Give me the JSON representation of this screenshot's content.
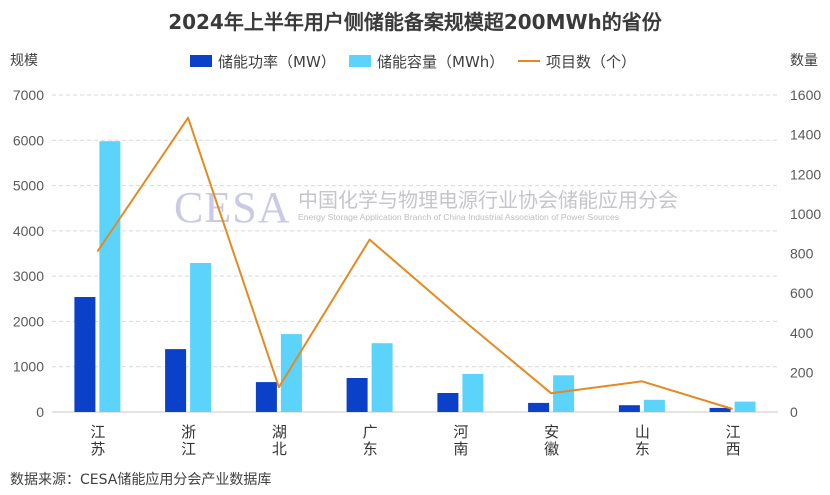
{
  "chart_data": {
    "type": "bar",
    "title": "2024年上半年用户侧储能备案规模超200MWh的省份",
    "ylabel": "规模",
    "y2label": "数量",
    "categories": [
      "江苏",
      "浙江",
      "湖北",
      "广东",
      "河南",
      "安徽",
      "山东",
      "江西"
    ],
    "ylim": [
      0,
      7000
    ],
    "y2lim": [
      0,
      1600
    ],
    "yticks": [
      0,
      1000,
      2000,
      3000,
      4000,
      5000,
      6000,
      7000
    ],
    "y2ticks": [
      0,
      200,
      400,
      600,
      800,
      1000,
      1200,
      1400,
      1600
    ],
    "grid": true,
    "legend": "top-center",
    "series": [
      {
        "name": "储能功率（MW）",
        "type": "bar",
        "axis": "left",
        "color": "#0a41c8",
        "values": [
          2540,
          1390,
          660,
          750,
          420,
          200,
          150,
          90
        ]
      },
      {
        "name": "储能容量（MWh）",
        "type": "bar",
        "axis": "left",
        "color": "#5cd3fb",
        "values": [
          5980,
          3290,
          1720,
          1520,
          840,
          810,
          270,
          230
        ]
      },
      {
        "name": "项目数（个）",
        "type": "line",
        "axis": "right",
        "color": "#e38a23",
        "values": [
          810,
          1485,
          125,
          870,
          475,
          95,
          155,
          15
        ]
      }
    ]
  },
  "source": "数据来源：CESA储能应用分会产业数据库",
  "watermark": {
    "logo": "CESA",
    "name_cn": "中国化学与物理电源行业协会储能应用分会",
    "name_en": "Energy Storage Application Branch of China Industrial Association of Power Sources"
  }
}
